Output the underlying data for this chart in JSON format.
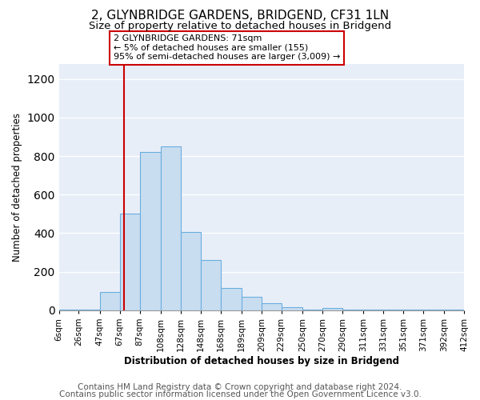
{
  "title": "2, GLYNBRIDGE GARDENS, BRIDGEND, CF31 1LN",
  "subtitle": "Size of property relative to detached houses in Bridgend",
  "xlabel": "Distribution of detached houses by size in Bridgend",
  "ylabel": "Number of detached properties",
  "bin_labels": [
    "6sqm",
    "26sqm",
    "47sqm",
    "67sqm",
    "87sqm",
    "108sqm",
    "128sqm",
    "148sqm",
    "168sqm",
    "189sqm",
    "209sqm",
    "229sqm",
    "250sqm",
    "270sqm",
    "290sqm",
    "311sqm",
    "331sqm",
    "351sqm",
    "371sqm",
    "392sqm",
    "412sqm"
  ],
  "bin_edges": [
    6,
    26,
    47,
    67,
    87,
    108,
    128,
    148,
    168,
    189,
    209,
    229,
    250,
    270,
    290,
    311,
    331,
    351,
    371,
    392,
    412
  ],
  "bar_heights": [
    5,
    5,
    95,
    500,
    820,
    850,
    405,
    260,
    115,
    70,
    35,
    15,
    5,
    12,
    5,
    5,
    5,
    5,
    5,
    5
  ],
  "bar_color": "#c9ddf0",
  "bar_edge_color": "#6aaee0",
  "vline_x": 71,
  "vline_color": "#cc0000",
  "ylim": [
    0,
    1280
  ],
  "yticks": [
    0,
    200,
    400,
    600,
    800,
    1000,
    1200
  ],
  "annotation_line1": "2 GLYNBRIDGE GARDENS: 71sqm",
  "annotation_line2": "← 5% of detached houses are smaller (155)",
  "annotation_line3": "95% of semi-detached houses are larger (3,009) →",
  "footer_line1": "Contains HM Land Registry data © Crown copyright and database right 2024.",
  "footer_line2": "Contains public sector information licensed under the Open Government Licence v3.0.",
  "background_color": "#ffffff",
  "plot_bg_color": "#e8eef8",
  "grid_color": "#ffffff",
  "title_fontsize": 11,
  "subtitle_fontsize": 9.5,
  "axis_fontsize": 8.5,
  "tick_fontsize": 7.5,
  "footer_fontsize": 7.5
}
